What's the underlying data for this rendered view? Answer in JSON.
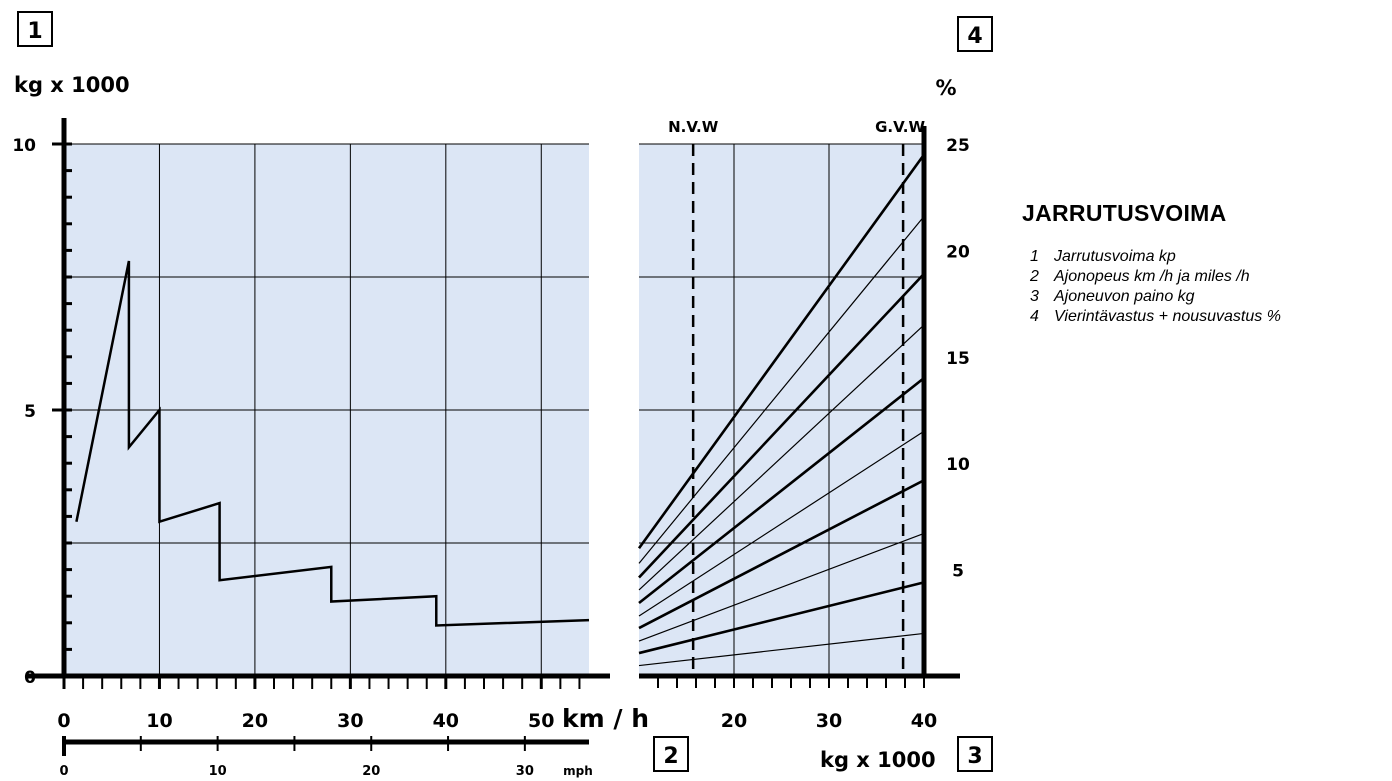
{
  "chart_data": [
    {
      "type": "line",
      "box_label": "1",
      "ylabel": "kg x 1000",
      "y_ticks": [
        "0",
        "5",
        "10"
      ],
      "ylim": [
        0,
        10
      ],
      "xlabel": "km / h",
      "xlim": [
        0,
        55
      ],
      "x_ticks": [
        "0",
        "10",
        "20",
        "30",
        "40",
        "50"
      ],
      "secondary_x": {
        "box_label": "2",
        "ticks": [
          "0",
          "10",
          "20",
          "30"
        ],
        "unit": "mph"
      },
      "grid": true,
      "background": "#dce6f5",
      "series": [
        {
          "x": [
            1.3,
            6.8,
            6.8,
            10,
            10,
            16.3,
            16.3,
            28,
            28,
            39,
            39,
            55
          ],
          "y": [
            2.9,
            7.8,
            4.3,
            5.0,
            2.9,
            3.25,
            1.8,
            2.05,
            1.4,
            1.5,
            0.95,
            1.05
          ]
        }
      ]
    },
    {
      "type": "line",
      "box_label": "4",
      "ylabel": "%",
      "y_ticks": [
        "5",
        "10",
        "15",
        "20",
        "25"
      ],
      "ylim": [
        0,
        25
      ],
      "xlabel": "kg x 1000",
      "x_box_label": "3",
      "xlim": [
        10,
        40
      ],
      "x_ticks": [
        "20",
        "30",
        "40"
      ],
      "grid": true,
      "background": "#dce6f5",
      "reference_lines": [
        {
          "label": "N.V.W",
          "x": 15.7
        },
        {
          "label": "G.V.W",
          "x": 37.8
        }
      ],
      "fan_lines_end_values": [
        2,
        4.4,
        6.7,
        9.2,
        11.5,
        14,
        16.5,
        18.9,
        21.6,
        24.5
      ],
      "fan_lines_thick": [
        false,
        true,
        false,
        true,
        false,
        true,
        false,
        true,
        false,
        true
      ],
      "fan_x": [
        10,
        40
      ]
    }
  ],
  "legend": {
    "title": "JARRUTUSVOIMA",
    "items": [
      {
        "num": "1",
        "text": "Jarrutusvoima  kp"
      },
      {
        "num": "2",
        "text": "Ajonopeus  km /h ja miles /h"
      },
      {
        "num": "3",
        "text": "Ajoneuvon paino kg"
      },
      {
        "num": "4",
        "text": "Vierintävastus  +  nousuvastus %"
      }
    ]
  }
}
